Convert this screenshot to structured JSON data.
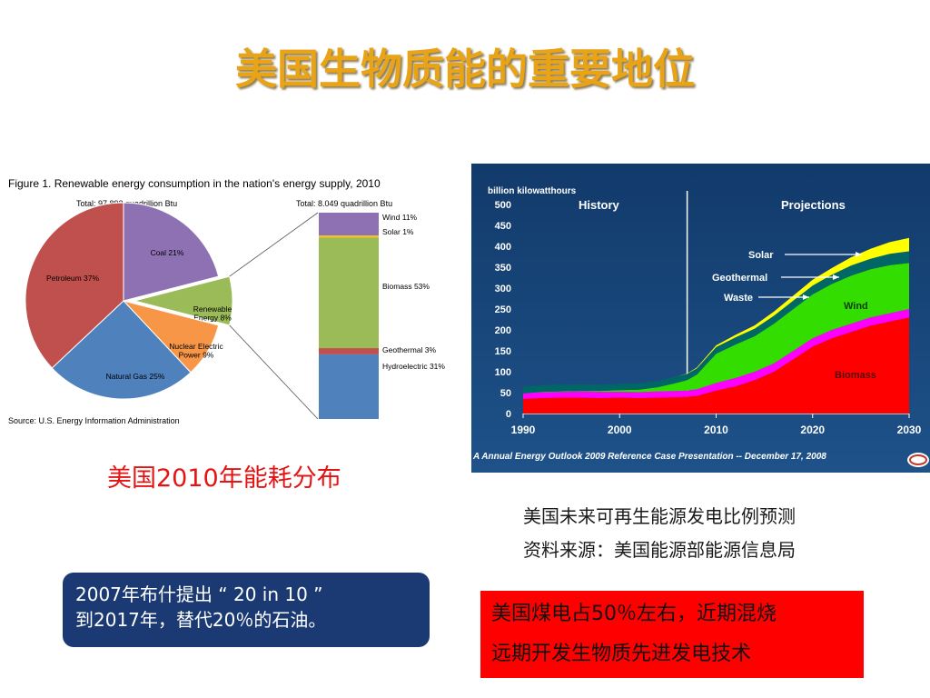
{
  "slide": {
    "title": "美国生物质能的重要地位",
    "caption_2010": "美国2010年能耗分布",
    "projection_note_line1": "美国未来可再生能源发电比例预测",
    "projection_note_line2": "资料来源：美国能源部能源信息局",
    "box_blue_line1": "2007年布什提出 “ 20 in 10 ”",
    "box_blue_line2": "到2017年，替代20％的石油。",
    "box_red_line1": "美国煤电占50％左右，近期混烧",
    "box_red_line2": "远期开发生物质先进发电技术",
    "colors": {
      "title": "#e8a317",
      "red_text": "#e41414",
      "blue_box": "#1b3a73",
      "red_box": "#ff0000"
    }
  },
  "chart_data": [
    {
      "type": "pie",
      "title": "Figure 1.  Renewable energy consumption in the nation's energy supply, 2010",
      "subtitle": "Total:  97.892 quadrillion Btu",
      "source": "Source:  U.S. Energy Information Administration",
      "slices": [
        {
          "label": "Coal",
          "value": 21,
          "label_text": "Coal  21%",
          "color": "#8d71b3"
        },
        {
          "label": "Renewable Energy",
          "value": 8,
          "label_text": "Renewable\nEnergy  8%",
          "color": "#9bbb59"
        },
        {
          "label": "Nuclear Electric Power",
          "value": 9,
          "label_text": "Nuclear Electric\nPower  9%",
          "color": "#f79646"
        },
        {
          "label": "Natural Gas",
          "value": 25,
          "label_text": "Natural Gas  25%",
          "color": "#4f81bd"
        },
        {
          "label": "Petroleum",
          "value": 37,
          "label_text": "Petroleum  37%",
          "color": "#c0504d"
        }
      ]
    },
    {
      "type": "bar",
      "subtitle": "Total:  8.049 quadrillion Btu",
      "stacked": true,
      "segments": [
        {
          "label": "Wind",
          "value": 11,
          "label_text": "Wind  11%",
          "color": "#8d71b3"
        },
        {
          "label": "Solar",
          "value": 1,
          "label_text": "Solar  1%",
          "color": "#f3c11b"
        },
        {
          "label": "Biomass",
          "value": 53,
          "label_text": "Biomass  53%",
          "color": "#9bbb59"
        },
        {
          "label": "Geothermal",
          "value": 3,
          "label_text": "Geothermal  3%",
          "color": "#c0504d"
        },
        {
          "label": "Hydroelectric",
          "value": 31,
          "label_text": "Hydroelectric  31%",
          "color": "#4f81bd"
        }
      ]
    },
    {
      "type": "area",
      "ylabel": "billion kilowatthours",
      "xlim": [
        1990,
        2030
      ],
      "ylim": [
        0,
        500
      ],
      "x_ticks": [
        1990,
        2000,
        2010,
        2020,
        2030
      ],
      "y_ticks": [
        0,
        50,
        100,
        150,
        200,
        250,
        300,
        350,
        400,
        450,
        500
      ],
      "divider_x": 2007,
      "region_labels": [
        "History",
        "Projections"
      ],
      "footer": "A Annual Energy Outlook 2009 Reference Case Presentation -- December 17, 2008",
      "x": [
        1990,
        1992,
        1994,
        1996,
        1998,
        2000,
        2002,
        2004,
        2006,
        2007,
        2008,
        2010,
        2012,
        2014,
        2016,
        2018,
        2020,
        2022,
        2024,
        2026,
        2028,
        2030
      ],
      "series": [
        {
          "name": "Biomass",
          "color": "#ff0000",
          "values": [
            35,
            37,
            38,
            38,
            37,
            38,
            37,
            38,
            39,
            40,
            42,
            55,
            65,
            80,
            100,
            130,
            160,
            180,
            195,
            210,
            220,
            230
          ]
        },
        {
          "name": "Waste",
          "color": "#ff00ff",
          "values": [
            13,
            14,
            14,
            15,
            15,
            14,
            14,
            15,
            15,
            15,
            16,
            18,
            20,
            20,
            20,
            20,
            20,
            20,
            20,
            20,
            20,
            20
          ]
        },
        {
          "name": "Wind",
          "color": "#33dd00",
          "values": [
            0,
            1,
            1,
            1,
            2,
            4,
            6,
            10,
            20,
            25,
            35,
            70,
            80,
            85,
            95,
            100,
            105,
            110,
            115,
            115,
            115,
            110
          ]
        },
        {
          "name": "Geothermal",
          "color": "#006666",
          "values": [
            16,
            16,
            16,
            16,
            15,
            15,
            15,
            15,
            15,
            15,
            15,
            16,
            17,
            18,
            19,
            20,
            21,
            22,
            24,
            25,
            27,
            28
          ]
        },
        {
          "name": "Solar",
          "color": "#ffff00",
          "values": [
            0,
            0,
            0,
            0,
            0,
            0,
            0,
            0,
            0,
            1,
            2,
            4,
            6,
            8,
            10,
            12,
            14,
            16,
            20,
            24,
            28,
            32
          ]
        }
      ],
      "labels": {
        "history": "History",
        "projections": "Projections",
        "solar": "Solar",
        "geothermal": "Geothermal",
        "waste": "Waste",
        "wind": "Wind",
        "biomass": "Biomass"
      }
    }
  ]
}
